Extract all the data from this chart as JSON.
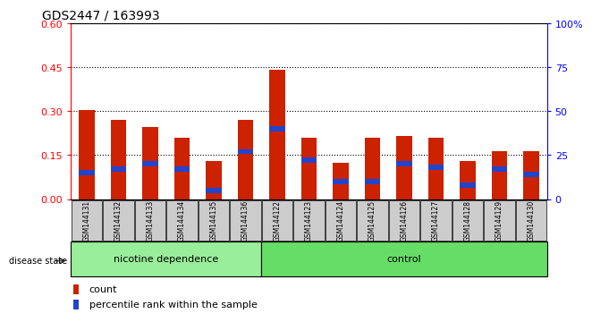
{
  "title": "GDS2447 / 163993",
  "samples": [
    "GSM144131",
    "GSM144132",
    "GSM144133",
    "GSM144134",
    "GSM144135",
    "GSM144136",
    "GSM144122",
    "GSM144123",
    "GSM144124",
    "GSM144125",
    "GSM144126",
    "GSM144127",
    "GSM144128",
    "GSM144129",
    "GSM144130"
  ],
  "count_values": [
    0.305,
    0.27,
    0.245,
    0.21,
    0.13,
    0.27,
    0.44,
    0.21,
    0.125,
    0.21,
    0.215,
    0.21,
    0.13,
    0.165,
    0.165
  ],
  "percentile_values_pct": [
    15,
    17,
    20,
    17,
    5,
    27,
    40,
    22,
    10,
    10,
    20,
    18,
    8,
    17,
    14
  ],
  "groups": [
    {
      "label": "nicotine dependence",
      "start": 0,
      "end": 6,
      "color": "#99ee99"
    },
    {
      "label": "control",
      "start": 6,
      "end": 15,
      "color": "#66dd66"
    }
  ],
  "group_label": "disease state",
  "ylim_left": [
    0,
    0.6
  ],
  "ylim_right": [
    0,
    100
  ],
  "yticks_left": [
    0,
    0.15,
    0.3,
    0.45,
    0.6
  ],
  "yticks_right": [
    0,
    25,
    50,
    75,
    100
  ],
  "bar_color_count": "#cc2200",
  "bar_color_percentile": "#2244cc",
  "bar_width": 0.5,
  "background_color": "#ffffff",
  "plot_bg_color": "#ffffff",
  "legend_items": [
    "count",
    "percentile rank within the sample"
  ]
}
